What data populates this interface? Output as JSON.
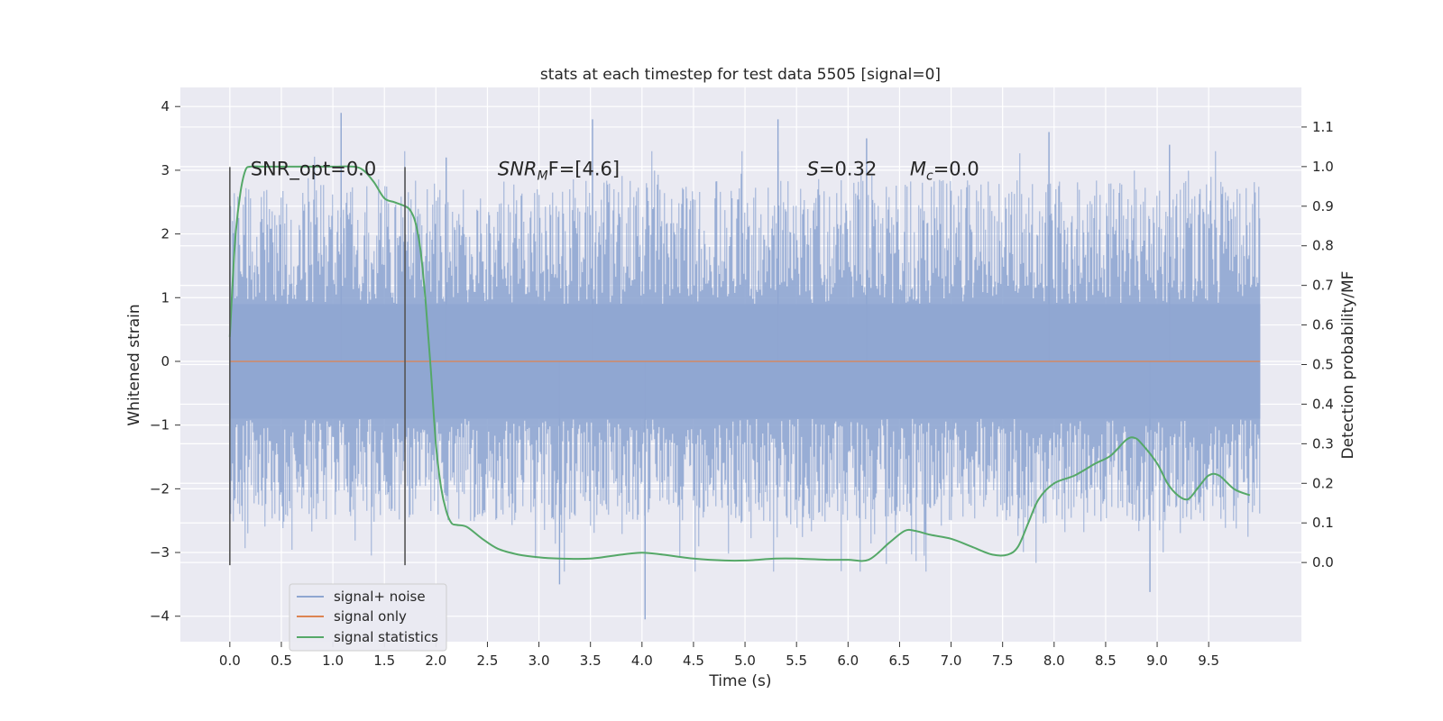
{
  "chart_data": {
    "type": "line",
    "title": "stats at each timestep for test data 5505 [signal=0]",
    "xlabel": "Time (s)",
    "ylabel": "Whitened strain",
    "ylabel_right": "Detection probability/MF",
    "xlim": [
      -0.48,
      10.4
    ],
    "ylim": [
      -4.4,
      4.3
    ],
    "ylim_right": [
      -0.2,
      1.2
    ],
    "x_ticks": [
      0.0,
      0.5,
      1.0,
      1.5,
      2.0,
      2.5,
      3.0,
      3.5,
      4.0,
      4.5,
      5.0,
      5.5,
      6.0,
      6.5,
      7.0,
      7.5,
      8.0,
      8.5,
      9.0,
      9.5
    ],
    "x_tick_labels": [
      "0.0",
      "0.5",
      "1.0",
      "1.5",
      "2.0",
      "2.5",
      "3.0",
      "3.5",
      "4.0",
      "4.5",
      "5.0",
      "5.5",
      "6.0",
      "6.5",
      "7.0",
      "7.5",
      "8.0",
      "8.5",
      "9.0",
      "9.5"
    ],
    "y_ticks": [
      4,
      3,
      2,
      1,
      0,
      -1,
      -2,
      -3,
      -4
    ],
    "y_tick_labels": [
      "4",
      "3",
      "2",
      "1",
      "0",
      "−1",
      "−2",
      "−3",
      "−4"
    ],
    "y_right_ticks": [
      1.1,
      1.0,
      0.9,
      0.8,
      0.7,
      0.6,
      0.5,
      0.4,
      0.3,
      0.2,
      0.1,
      0.0
    ],
    "y_right_tick_labels": [
      "1.1",
      "1.0",
      "0.9",
      "0.8",
      "0.7",
      "0.6",
      "0.5",
      "0.4",
      "0.3",
      "0.2",
      "0.1",
      "0.0"
    ],
    "grid": true,
    "legend_placement": "lower-left",
    "series": [
      {
        "name": "signal+ noise",
        "color": "#8fa6d1",
        "kind": "noise",
        "x_range": [
          0.0,
          10.0
        ],
        "core_band": [
          -0.9,
          0.9
        ],
        "typical_peaks": [
          2.6,
          -2.4
        ],
        "highlighted_peaks": [
          {
            "x": 1.08,
            "y": 3.9
          },
          {
            "x": 3.52,
            "y": 3.8
          },
          {
            "x": 5.32,
            "y": 3.8
          },
          {
            "x": 4.03,
            "y": -4.05
          },
          {
            "x": 8.93,
            "y": -3.62
          },
          {
            "x": 3.2,
            "y": -3.5
          },
          {
            "x": 7.95,
            "y": 3.6
          },
          {
            "x": 6.18,
            "y": 3.5
          },
          {
            "x": 9.12,
            "y": 3.4
          },
          {
            "x": 2.1,
            "y": 3.2
          }
        ]
      },
      {
        "name": "signal only",
        "color": "#dd8452",
        "x": [
          0.0,
          10.0
        ],
        "y": [
          0.0,
          0.0
        ]
      },
      {
        "name": "signal statistics",
        "color": "#55a868",
        "axis": "right",
        "x": [
          0.0,
          0.05,
          0.1,
          0.15,
          0.2,
          0.3,
          0.5,
          0.8,
          1.0,
          1.2,
          1.3,
          1.4,
          1.5,
          1.6,
          1.7,
          1.75,
          1.8,
          1.85,
          1.9,
          1.95,
          2.0,
          2.05,
          2.1,
          2.15,
          2.2,
          2.3,
          2.45,
          2.6,
          2.8,
          3.0,
          3.2,
          3.5,
          3.8,
          4.0,
          4.2,
          4.5,
          4.8,
          5.0,
          5.3,
          5.5,
          5.8,
          6.0,
          6.2,
          6.4,
          6.55,
          6.65,
          6.8,
          7.0,
          7.2,
          7.4,
          7.55,
          7.65,
          7.75,
          7.85,
          8.0,
          8.2,
          8.4,
          8.55,
          8.7,
          8.78,
          8.85,
          9.0,
          9.1,
          9.2,
          9.3,
          9.4,
          9.5,
          9.6,
          9.75,
          9.9
        ],
        "y": [
          0.57,
          0.81,
          0.93,
          0.99,
          1.0,
          1.0,
          1.0,
          1.0,
          1.0,
          1.0,
          0.99,
          0.96,
          0.92,
          0.91,
          0.9,
          0.89,
          0.86,
          0.79,
          0.66,
          0.49,
          0.3,
          0.19,
          0.13,
          0.1,
          0.095,
          0.09,
          0.06,
          0.035,
          0.02,
          0.013,
          0.01,
          0.01,
          0.02,
          0.025,
          0.02,
          0.01,
          0.005,
          0.005,
          0.01,
          0.01,
          0.007,
          0.007,
          0.007,
          0.05,
          0.08,
          0.08,
          0.07,
          0.06,
          0.04,
          0.02,
          0.02,
          0.04,
          0.1,
          0.16,
          0.2,
          0.22,
          0.25,
          0.27,
          0.31,
          0.315,
          0.3,
          0.25,
          0.2,
          0.17,
          0.16,
          0.19,
          0.22,
          0.22,
          0.185,
          0.17
        ]
      }
    ],
    "vertical_lines": [
      {
        "x": 0.0,
        "y_range": [
          -3.2,
          3.05
        ],
        "color": "#555555"
      },
      {
        "x": 1.7,
        "y_range": [
          -3.2,
          3.05
        ],
        "color": "#555555"
      }
    ],
    "annotations": [
      {
        "text": "SNR_opt=0.0",
        "x": 0.2,
        "y": 3.02,
        "italic": false
      },
      {
        "text": "SNR",
        "sub": "M",
        "tail": "F=[4.6]",
        "x": 2.6,
        "y": 3.02,
        "italic": true
      },
      {
        "text": "S",
        "tail": "=0.32",
        "x": 5.6,
        "y": 3.02,
        "italic": true
      },
      {
        "text": "M",
        "sub": "c",
        "tail": "=0.0",
        "x": 6.6,
        "y": 3.02,
        "italic": true
      }
    ]
  }
}
